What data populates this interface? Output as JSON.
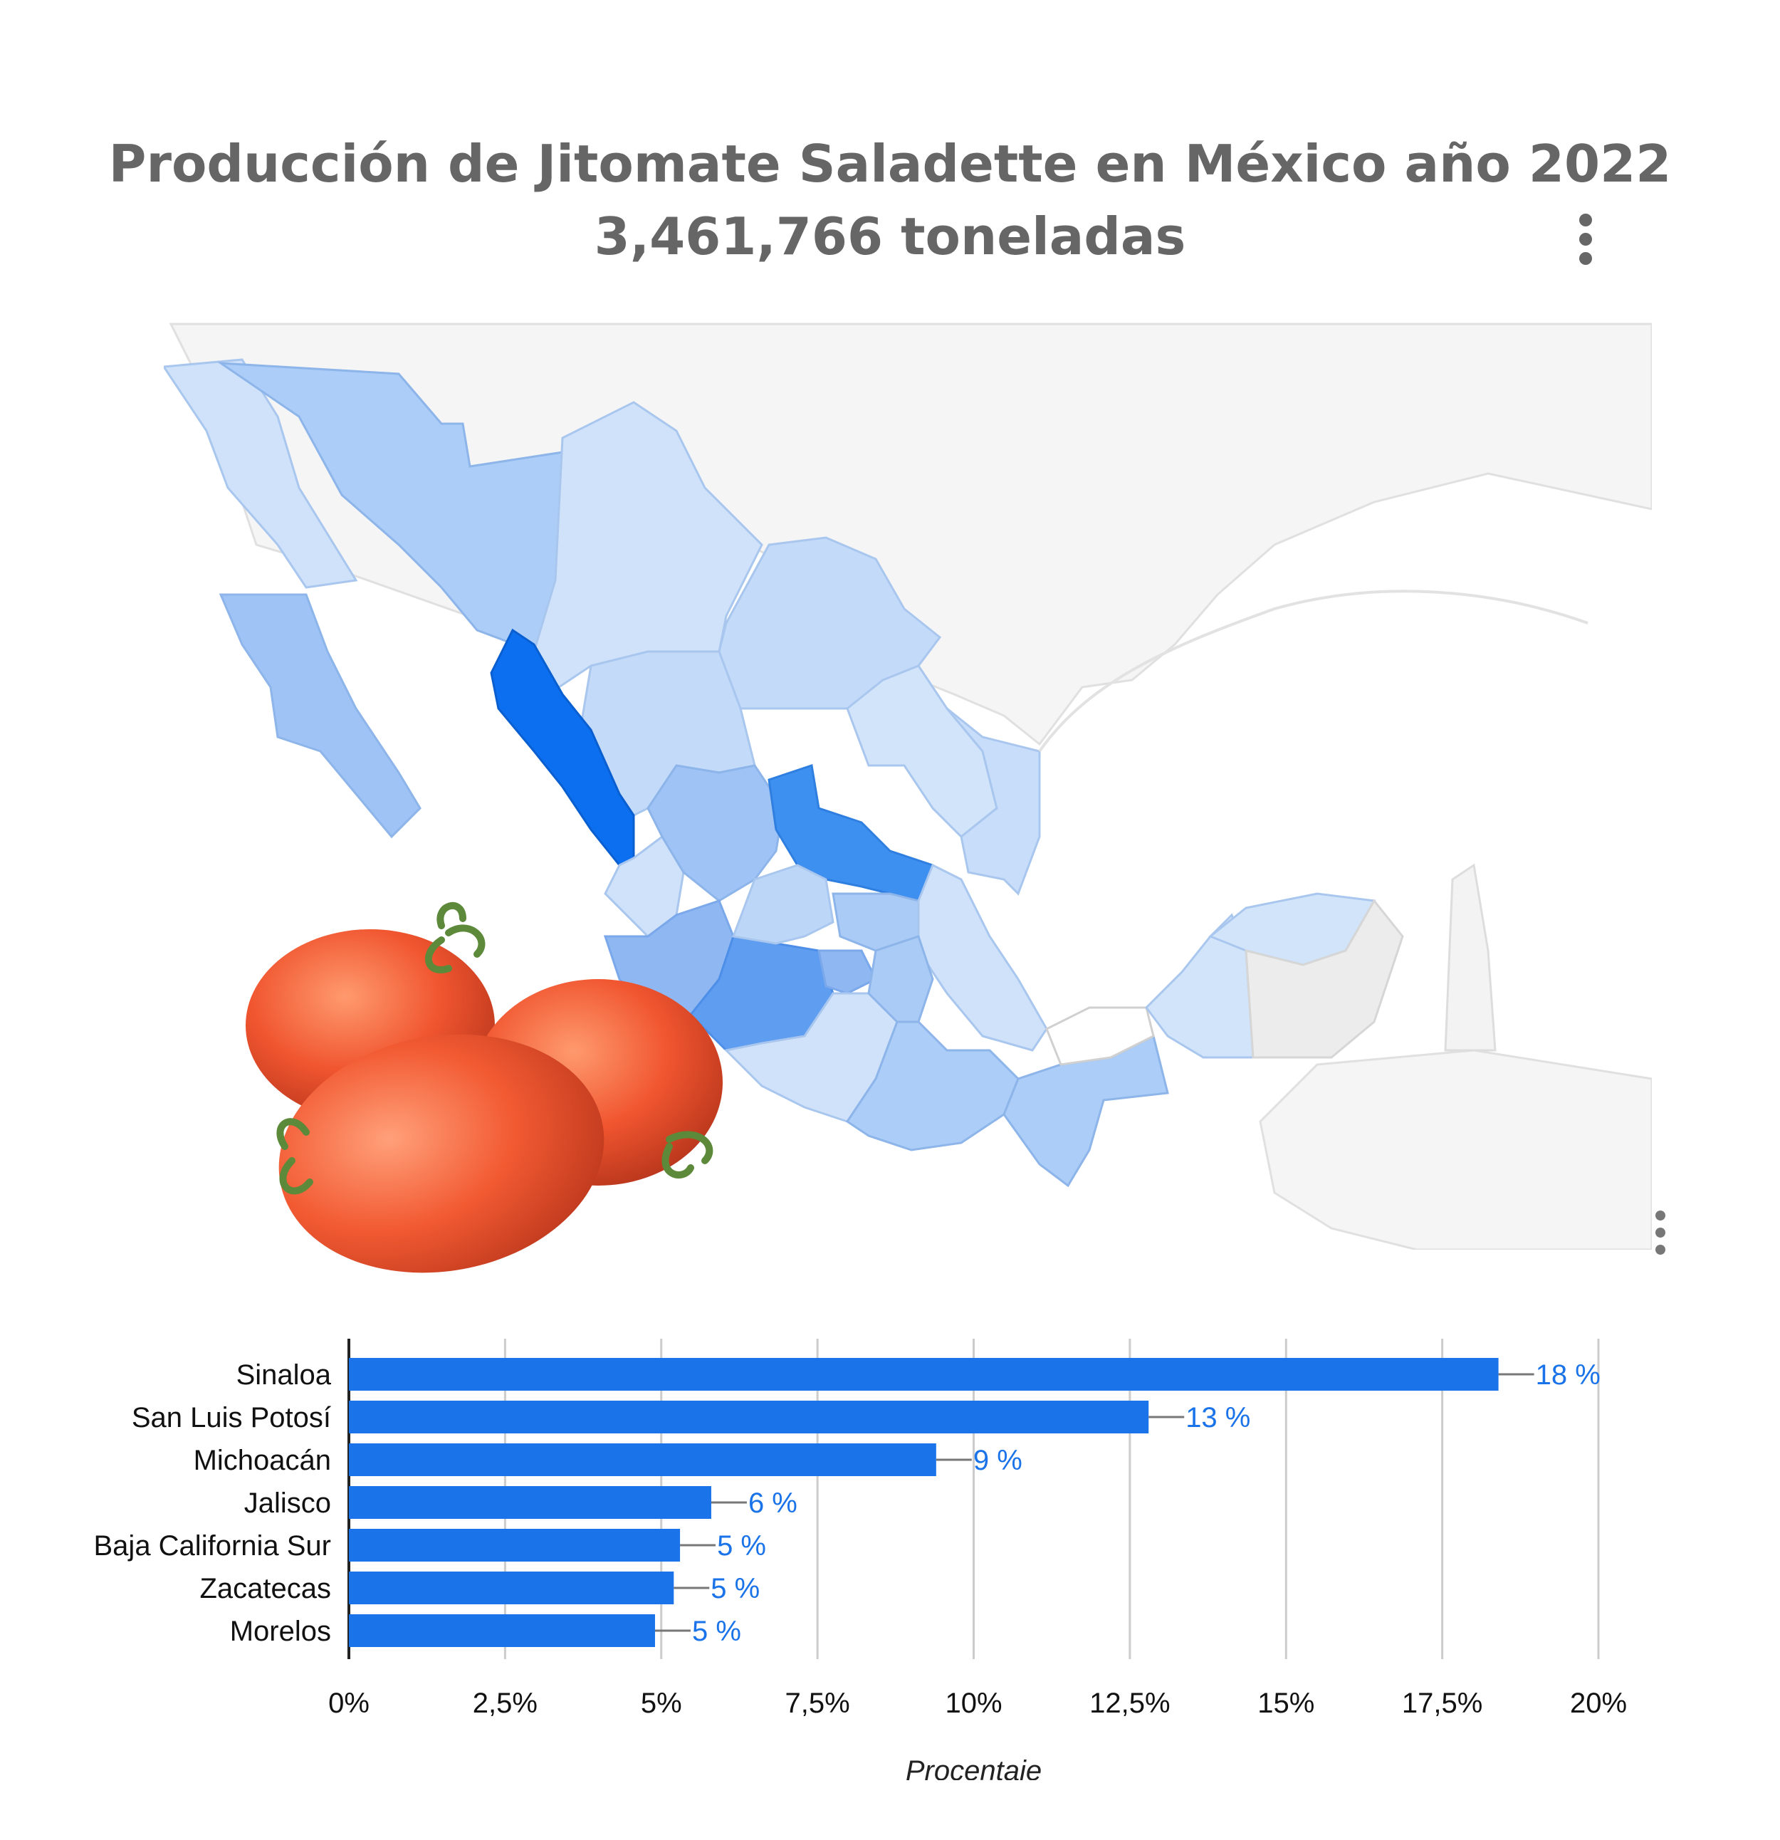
{
  "header": {
    "title_line1": "Producción de Jitomate Saladette en México año 2022",
    "title_line2": "3,461,766 toneladas"
  },
  "menu_icon": "more-vert-icon",
  "colors": {
    "bar": "#1a73e8",
    "label": "#1a73e8",
    "map_dark": "#0b6ff0",
    "map_mid": "#3d8ff0",
    "map_light": "#cfe2fa",
    "background_land": "#f5f5f5"
  },
  "chart_data": [
    {
      "type": "choropleth-map",
      "region": "México",
      "highlighted": [
        "Sinaloa",
        "San Luis Potosí",
        "Michoacán"
      ]
    },
    {
      "type": "bar",
      "orientation": "horizontal",
      "categories": [
        "Sinaloa",
        "San Luis Potosí",
        "Michoacán",
        "Jalisco",
        "Baja California Sur",
        "Zacatecas",
        "Morelos"
      ],
      "values": [
        18.4,
        12.8,
        9.4,
        5.8,
        5.3,
        5.2,
        4.9
      ],
      "value_labels": [
        "18 %",
        "13 %",
        "9 %",
        "6 %",
        "5 %",
        "5 %",
        "5 %"
      ],
      "xlabel": "Procentaje",
      "xlim": [
        0,
        20
      ],
      "ticks": [
        "0%",
        "2,5%",
        "5%",
        "7,5%",
        "10%",
        "12,5%",
        "15%",
        "17,5%",
        "20%"
      ],
      "grid": true
    }
  ]
}
